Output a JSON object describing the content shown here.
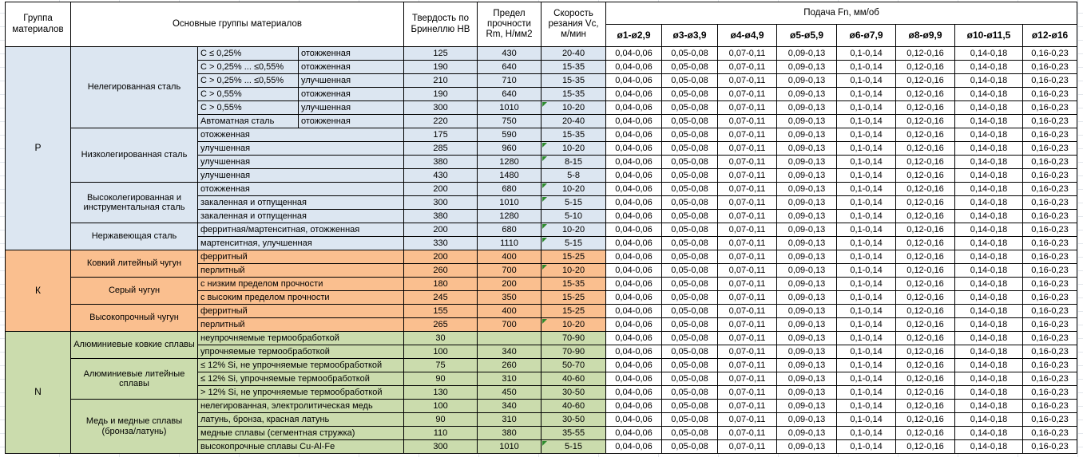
{
  "colors": {
    "steel_blue": "#DCE6F1",
    "cast_iron_orange": "#FABF8F",
    "nonferrous_green": "#CBDCAD",
    "note_marker": "#2E8B2E",
    "border": "#000000"
  },
  "table": {
    "headers": {
      "group": "Группа материалов",
      "main_groups": "Основные группы материалов",
      "hardness": "Твердость по Бринеллю HB",
      "strength": "Предел прочности Rm, Н/мм2",
      "speed": "Скорость резания Vc, м/мин",
      "feed": "Подача Fn, мм/об",
      "feed_cols": [
        "ø1-ø2,9",
        "ø3-ø3,9",
        "ø4-ø4,9",
        "ø5-ø5,9",
        "ø6-ø7,9",
        "ø8-ø9,9",
        "ø10-ø11,5",
        "ø12-ø16"
      ]
    },
    "feed_values": [
      "0,04-0,06",
      "0,05-0,08",
      "0,07-0,11",
      "0,09-0,13",
      "0,1-0,14",
      "0,12-0,16",
      "0,14-0,18",
      "0,16-0,23"
    ],
    "groups": [
      {
        "letter": "P",
        "color": "#DCE6F1",
        "subgroups": [
          {
            "name": "Нелегированная сталь",
            "rows": [
              {
                "composition": "C ≤ 0,25%",
                "state": "отожженная",
                "hb": "125",
                "rm": "430",
                "vc": "20-40",
                "note": false
              },
              {
                "composition": "C > 0,25% ... ≤0,55%",
                "state": "отожженная",
                "hb": "190",
                "rm": "640",
                "vc": "15-35",
                "note": false
              },
              {
                "composition": "C > 0,25% ... ≤0,55%",
                "state": "улучшенная",
                "hb": "210",
                "rm": "710",
                "vc": "15-35",
                "note": false
              },
              {
                "composition": "C > 0,55%",
                "state": "отожженная",
                "hb": "190",
                "rm": "640",
                "vc": "15-35",
                "note": false
              },
              {
                "composition": "C > 0,55%",
                "state": "улучшенная",
                "hb": "300",
                "rm": "1010",
                "vc": "10-20",
                "note": true
              },
              {
                "composition": "Автоматная сталь",
                "state": "отожженная",
                "hb": "220",
                "rm": "750",
                "vc": "20-40",
                "note": false
              }
            ]
          },
          {
            "name": "Низколегированная сталь",
            "rows": [
              {
                "desc": "отожженная",
                "hb": "175",
                "rm": "590",
                "vc": "15-35",
                "note": false
              },
              {
                "desc": "улучшенная",
                "hb": "285",
                "rm": "960",
                "vc": "10-20",
                "note": true
              },
              {
                "desc": "улучшенная",
                "hb": "380",
                "rm": "1280",
                "vc": "8-15",
                "note": true
              },
              {
                "desc": "улучшенная",
                "hb": "430",
                "rm": "1480",
                "vc": "5-8",
                "note": false
              }
            ]
          },
          {
            "name": "Высоколегированная и инструментальная сталь",
            "rows": [
              {
                "desc": "отожженная",
                "hb": "200",
                "rm": "680",
                "vc": "10-20",
                "note": true
              },
              {
                "desc": "закаленная и отпущенная",
                "hb": "300",
                "rm": "1010",
                "vc": "5-15",
                "note": true
              },
              {
                "desc": "закаленная и отпущенная",
                "hb": "380",
                "rm": "1280",
                "vc": "5-10",
                "note": false
              }
            ]
          },
          {
            "name": "Нержавеющая сталь",
            "rows": [
              {
                "desc": "ферритная/мартенситная, отожженная",
                "hb": "200",
                "rm": "680",
                "vc": "10-20",
                "note": true
              },
              {
                "desc": "мартенситная, улучшенная",
                "hb": "330",
                "rm": "1110",
                "vc": "5-15",
                "note": true
              }
            ]
          }
        ]
      },
      {
        "letter": "К",
        "color": "#FABF8F",
        "subgroups": [
          {
            "name": "Ковкий литейный чугун",
            "rows": [
              {
                "desc": "ферритный",
                "hb": "200",
                "rm": "400",
                "vc": "15-25",
                "note": false
              },
              {
                "desc": "перлитный",
                "hb": "260",
                "rm": "700",
                "vc": "10-20",
                "note": true
              }
            ]
          },
          {
            "name": "Серый чугун",
            "rows": [
              {
                "desc": "с низким пределом прочности",
                "hb": "180",
                "rm": "200",
                "vc": "15-35",
                "note": false
              },
              {
                "desc": "с высоким пределом прочности",
                "hb": "245",
                "rm": "350",
                "vc": "15-25",
                "note": false
              }
            ]
          },
          {
            "name": "Высокопрочный чугун",
            "rows": [
              {
                "desc": "ферритный",
                "hb": "155",
                "rm": "400",
                "vc": "15-25",
                "note": false
              },
              {
                "desc": "перлитный",
                "hb": "265",
                "rm": "700",
                "vc": "10-20",
                "note": true
              }
            ]
          }
        ]
      },
      {
        "letter": "N",
        "color": "#CBDCAD",
        "subgroups": [
          {
            "name": "Алюминиевые ковкие сплавы",
            "rows": [
              {
                "desc": "неупрочняемые термообработкой",
                "hb": "30",
                "rm": "",
                "vc": "70-90",
                "note": false
              },
              {
                "desc": "упрочняемые термообработкой",
                "hb": "100",
                "rm": "340",
                "vc": "70-90",
                "note": false
              }
            ]
          },
          {
            "name": "Алюминиевые литейные сплавы",
            "rows": [
              {
                "desc": "≤ 12% Si, не упрочняемые термообработкой",
                "hb": "75",
                "rm": "260",
                "vc": "50-70",
                "note": false
              },
              {
                "desc": "≤ 12% Si, упрочняемые термообработкой",
                "hb": "90",
                "rm": "310",
                "vc": "40-60",
                "note": false
              },
              {
                "desc": "> 12% Si, не упрочняемые термообработкой",
                "hb": "130",
                "rm": "450",
                "vc": "30-50",
                "note": false
              }
            ]
          },
          {
            "name": "Медь и медные сплавы (бронза/латунь)",
            "rows": [
              {
                "desc": "нелегированная, электролитическая медь",
                "hb": "100",
                "rm": "340",
                "vc": "40-60",
                "note": false
              },
              {
                "desc": "латунь, бронза, красная латунь",
                "hb": "90",
                "rm": "310",
                "vc": "30-50",
                "note": false
              },
              {
                "desc": "медные сплавы (сегментная стружка)",
                "hb": "110",
                "rm": "380",
                "vc": "35-55",
                "note": false
              },
              {
                "desc": "высокопрочные сплавы Cu-Al-Fe",
                "hb": "300",
                "rm": "1010",
                "vc": "5-15",
                "note": true
              }
            ]
          }
        ]
      }
    ]
  }
}
